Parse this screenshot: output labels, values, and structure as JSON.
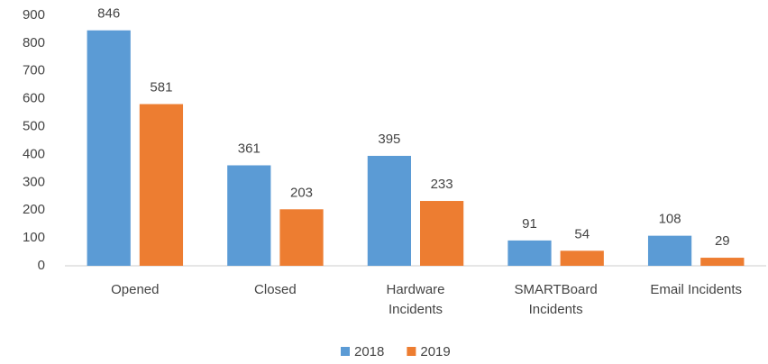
{
  "chart_data": {
    "type": "bar",
    "categories": [
      "Opened",
      "Closed",
      "Hardware\nIncidents",
      "SMARTBoard\nIncidents",
      "Email Incidents"
    ],
    "series": [
      {
        "name": "2018",
        "color": "#5b9bd5",
        "values": [
          846,
          361,
          395,
          91,
          108
        ]
      },
      {
        "name": "2019",
        "color": "#ed7d31",
        "values": [
          581,
          203,
          233,
          54,
          29
        ]
      }
    ],
    "ylim": [
      0,
      900
    ],
    "yticks": [
      0,
      100,
      200,
      300,
      400,
      500,
      600,
      700,
      800,
      900
    ],
    "grid": false,
    "legend": "bottom"
  }
}
